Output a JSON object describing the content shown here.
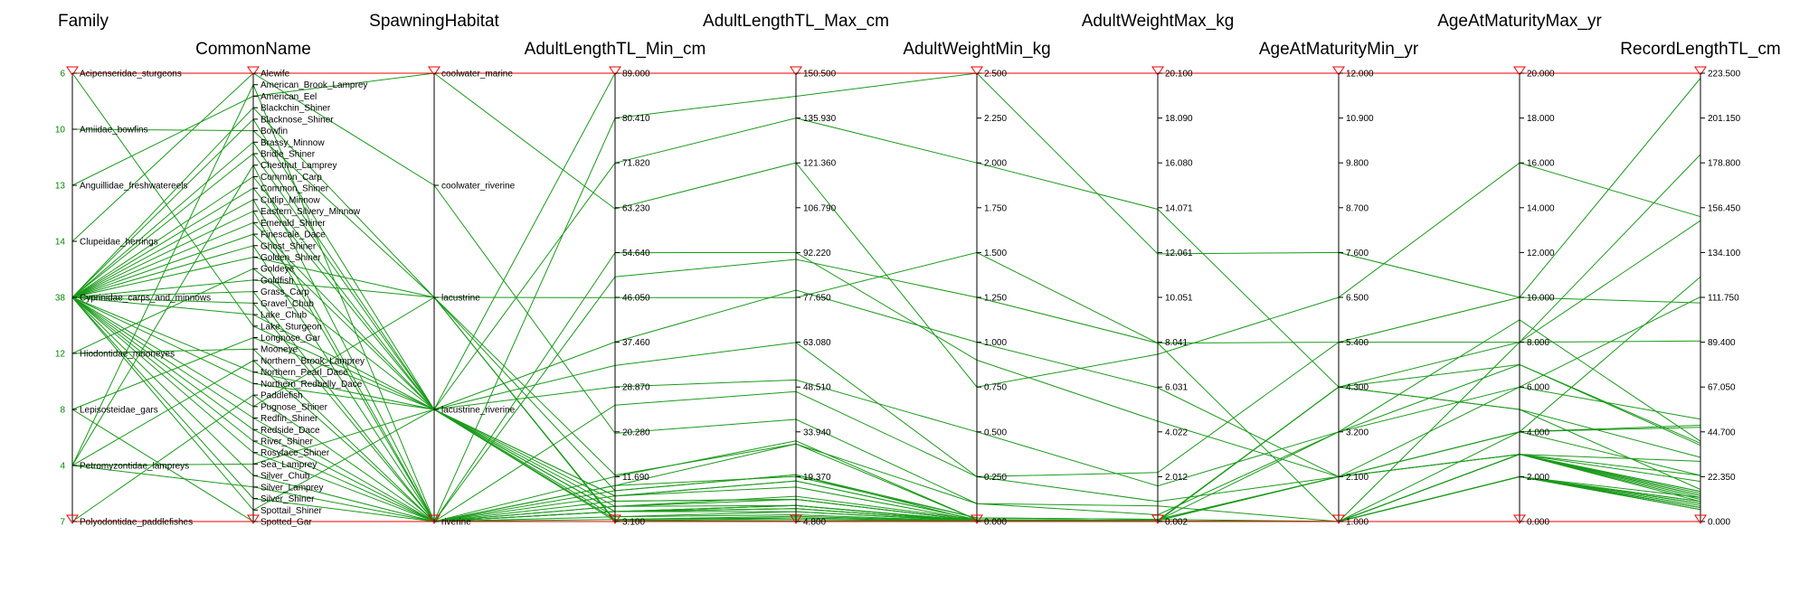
{
  "chart_data": {
    "type": "parallel_coordinates",
    "line_color": "#1a9a1a",
    "axis_color": "#000000",
    "marker_color": "#ee0000",
    "axes": [
      {
        "name": "Family",
        "kind": "categorical",
        "title_row": "top",
        "categories": [
          "Acipenseridae_sturgeons",
          "Amiidae_bowfins",
          "Anguillidae_freshwatereels",
          "Clupeidae_herrings",
          "Cyprinidae_carps_and_minnows",
          "Hiodontidae_mooneyes",
          "Lepisosteidae_gars",
          "Petromyzontidae_lampreys",
          "Polyodontidae_paddlefishes"
        ],
        "counts": [
          "6",
          "10",
          "13",
          "14",
          "38",
          "12",
          "8",
          "4",
          "7"
        ]
      },
      {
        "name": "CommonName",
        "kind": "categorical",
        "title_row": "bottom",
        "categories": [
          "Alewife",
          "American_Brook_Lamprey",
          "American_Eel",
          "Blackchin_Shiner",
          "Blacknose_Shiner",
          "Bowfin",
          "Brassy_Minnow",
          "Bridle_Shiner",
          "Chestnut_Lamprey",
          "Common_Carp",
          "Common_Shiner",
          "Cutlip_Minnow",
          "Eastern_Silvery_Minnow",
          "Emerald_Shiner",
          "Finescale_Dace",
          "Ghost_Shiner",
          "Golden_Shiner",
          "Goldeye",
          "Goldfish",
          "Grass_Carp",
          "Gravel_Chub",
          "Lake_Chub",
          "Lake_Sturgeon",
          "Longnose_Gar",
          "Mooneye",
          "Northern_Brook_Lamprey",
          "Northern_Pearl_Dace",
          "Northern_Redbelly_Dace",
          "Paddlefish",
          "Pugnose_Shiner",
          "Redfin_Shiner",
          "Redside_Dace",
          "River_Shiner",
          "Rosyface_Shiner",
          "Sea_Lamprey",
          "Silver_Chub",
          "Silver_Lamprey",
          "Silver_Shiner",
          "Spottail_Shiner",
          "Spotted_Gar"
        ]
      },
      {
        "name": "SpawningHabitat",
        "kind": "categorical",
        "title_row": "top",
        "categories": [
          "coolwater_marine",
          "coolwater_riverine",
          "lacustrine",
          "lacustrine_riverine",
          "riverine"
        ]
      },
      {
        "name": "AdultLengthTL_Min_cm",
        "kind": "numeric",
        "title_row": "bottom",
        "min": 3.1,
        "max": 89.0,
        "ticks": [
          "89.000",
          "80.410",
          "71.820",
          "63.230",
          "54.640",
          "46.050",
          "37.460",
          "28.870",
          "20.280",
          "11.690",
          "3.100"
        ]
      },
      {
        "name": "AdultLengthTL_Max_cm",
        "kind": "numeric",
        "title_row": "top",
        "min": 4.8,
        "max": 150.5,
        "ticks": [
          "150.500",
          "135.930",
          "121.360",
          "106.790",
          "92.220",
          "77.650",
          "63.080",
          "48.510",
          "33.940",
          "19.370",
          "4.800"
        ]
      },
      {
        "name": "AdultWeightMin_kg",
        "kind": "numeric",
        "title_row": "bottom",
        "min": 0.0,
        "max": 2.5,
        "ticks": [
          "2.500",
          "2.250",
          "2.000",
          "1.750",
          "1.500",
          "1.250",
          "1.000",
          "0.750",
          "0.500",
          "0.250",
          "0.000"
        ]
      },
      {
        "name": "AdultWeightMax_kg",
        "kind": "numeric",
        "title_row": "top",
        "min": 0.002,
        "max": 20.1,
        "ticks": [
          "20.100",
          "18.090",
          "16.080",
          "14.071",
          "12.061",
          "10.051",
          "8.041",
          "6.031",
          "4.022",
          "2.012",
          "0.002"
        ]
      },
      {
        "name": "AgeAtMaturityMin_yr",
        "kind": "numeric",
        "title_row": "bottom",
        "min": 1.0,
        "max": 12.0,
        "ticks": [
          "12.000",
          "10.900",
          "9.800",
          "8.700",
          "7.600",
          "6.500",
          "5.400",
          "4.300",
          "3.200",
          "2.100",
          "1.000"
        ]
      },
      {
        "name": "AgeAtMaturityMax_yr",
        "kind": "numeric",
        "title_row": "top",
        "min": 0.0,
        "max": 20.0,
        "ticks": [
          "20.000",
          "18.000",
          "16.000",
          "14.000",
          "12.000",
          "10.000",
          "8.000",
          "6.000",
          "4.000",
          "2.000",
          "0.000"
        ]
      },
      {
        "name": "RecordLengthTL_cm",
        "kind": "numeric",
        "title_row": "bottom",
        "min": 0.0,
        "max": 223.5,
        "ticks": [
          "223.500",
          "201.150",
          "178.800",
          "156.450",
          "134.100",
          "111.750",
          "89.400",
          "67.050",
          "44.700",
          "22.350",
          "0.000"
        ]
      }
    ],
    "records": [
      [
        "Acipenseridae_sturgeons",
        "Lake_Sturgeon",
        "lacustrine_riverine",
        89.0,
        150.5,
        2.5,
        20.1,
        12.0,
        20.0,
        223.5
      ],
      [
        "Amiidae_bowfins",
        "Bowfin",
        "lacustrine",
        46.0,
        77.6,
        1.5,
        8.0,
        5.4,
        10.0,
        109.0
      ],
      [
        "Anguillidae_freshwatereels",
        "American_Eel",
        "coolwater_marine",
        63.0,
        121.4,
        0.75,
        7.5,
        6.5,
        16.0,
        152.0
      ],
      [
        "Clupeidae_herrings",
        "Alewife",
        "coolwater_riverine",
        20.0,
        38.0,
        0.1,
        0.3,
        3.2,
        9.0,
        40.0
      ],
      [
        "Hiodontidae_mooneyes",
        "Goldeye",
        "lacustrine_riverine",
        28.9,
        50.8,
        0.5,
        1.6,
        3.2,
        6.0,
        51.0
      ],
      [
        "Hiodontidae_mooneyes",
        "Mooneye",
        "riverine",
        25.4,
        47.0,
        0.25,
        0.9,
        2.1,
        4.0,
        47.0
      ],
      [
        "Lepisosteidae_gars",
        "Longnose_Gar",
        "lacustrine_riverine",
        71.8,
        135.9,
        2.0,
        14.0,
        4.3,
        8.0,
        183.0
      ],
      [
        "Lepisosteidae_gars",
        "Spotted_Gar",
        "riverine",
        54.6,
        92.2,
        0.9,
        4.5,
        2.1,
        6.0,
        112.0
      ],
      [
        "Petromyzontidae_lampreys",
        "Sea_Lamprey",
        "lacustrine_riverine",
        33.0,
        63.0,
        0.25,
        2.2,
        5.4,
        8.0,
        90.0
      ],
      [
        "Petromyzontidae_lampreys",
        "Silver_Lamprey",
        "riverine",
        10.0,
        30.0,
        0.01,
        0.05,
        4.3,
        7.0,
        39.0
      ],
      [
        "Petromyzontidae_lampreys",
        "Chestnut_Lamprey",
        "riverine",
        11.7,
        31.0,
        0.01,
        0.05,
        3.2,
        7.0,
        38.0
      ],
      [
        "Petromyzontidae_lampreys",
        "American_Brook_Lamprey",
        "riverine",
        9.0,
        20.0,
        0.005,
        0.02,
        4.3,
        5.0,
        32.0
      ],
      [
        "Petromyzontidae_lampreys",
        "Northern_Brook_Lamprey",
        "riverine",
        8.0,
        16.0,
        0.005,
        0.02,
        4.3,
        5.0,
        16.0
      ],
      [
        "Polyodontidae_paddlefishes",
        "Paddlefish",
        "riverine",
        80.4,
        143.0,
        2.5,
        12.0,
        7.6,
        10.0,
        221.0
      ],
      [
        "Cyprinidae_carps_and_minnows",
        "Common_Carp",
        "lacustrine_riverine",
        37.5,
        80.0,
        1.0,
        6.0,
        2.1,
        4.0,
        122.0
      ],
      [
        "Cyprinidae_carps_and_minnows",
        "Grass_Carp",
        "riverine",
        50.0,
        90.0,
        1.25,
        8.0,
        1.0,
        8.0,
        150.0
      ],
      [
        "Cyprinidae_carps_and_minnows",
        "Goldfish",
        "lacustrine",
        12.0,
        30.0,
        0.1,
        0.7,
        1.0,
        4.0,
        48.0
      ],
      [
        "Cyprinidae_carps_and_minnows",
        "Golden_Shiner",
        "lacustrine",
        9.0,
        20.0,
        0.02,
        0.1,
        1.0,
        3.0,
        30.0
      ],
      [
        "Cyprinidae_carps_and_minnows",
        "Silver_Chub",
        "riverine",
        10.0,
        19.4,
        0.02,
        0.1,
        2.1,
        3.0,
        23.0
      ],
      [
        "Cyprinidae_carps_and_minnows",
        "Gravel_Chub",
        "riverine",
        6.0,
        13.0,
        0.01,
        0.04,
        2.1,
        3.0,
        14.0
      ],
      [
        "Cyprinidae_carps_and_minnows",
        "Lake_Chub",
        "lacustrine_riverine",
        8.0,
        18.0,
        0.01,
        0.05,
        2.1,
        4.0,
        23.0
      ],
      [
        "Cyprinidae_carps_and_minnows",
        "Common_Shiner",
        "lacustrine_riverine",
        8.0,
        18.0,
        0.01,
        0.05,
        2.1,
        3.0,
        20.0
      ],
      [
        "Cyprinidae_carps_and_minnows",
        "Emerald_Shiner",
        "lacustrine_riverine",
        6.0,
        10.0,
        0.005,
        0.02,
        1.0,
        3.0,
        13.0
      ],
      [
        "Cyprinidae_carps_and_minnows",
        "Spottail_Shiner",
        "lacustrine_riverine",
        7.0,
        12.0,
        0.005,
        0.02,
        1.0,
        3.0,
        15.0
      ],
      [
        "Cyprinidae_carps_and_minnows",
        "Silver_Shiner",
        "riverine",
        7.0,
        12.0,
        0.005,
        0.02,
        1.0,
        3.0,
        13.0
      ],
      [
        "Cyprinidae_carps_and_minnows",
        "River_Shiner",
        "riverine",
        5.0,
        9.0,
        0.002,
        0.01,
        1.0,
        3.0,
        10.0
      ],
      [
        "Cyprinidae_carps_and_minnows",
        "Rosyface_Shiner",
        "riverine",
        5.0,
        8.0,
        0.002,
        0.01,
        1.0,
        2.0,
        9.0
      ],
      [
        "Cyprinidae_carps_and_minnows",
        "Redfin_Shiner",
        "riverine",
        4.0,
        8.0,
        0.002,
        0.01,
        1.0,
        2.0,
        9.0
      ],
      [
        "Cyprinidae_carps_and_minnows",
        "Redside_Dace",
        "riverine",
        5.0,
        10.0,
        0.002,
        0.01,
        1.0,
        3.0,
        12.0
      ],
      [
        "Cyprinidae_carps_and_minnows",
        "Finescale_Dace",
        "lacustrine_riverine",
        5.0,
        9.0,
        0.002,
        0.01,
        1.0,
        2.0,
        10.0
      ],
      [
        "Cyprinidae_carps_and_minnows",
        "Northern_Pearl_Dace",
        "lacustrine_riverine",
        5.0,
        10.0,
        0.002,
        0.01,
        1.0,
        3.0,
        11.0
      ],
      [
        "Cyprinidae_carps_and_minnows",
        "Northern_Redbelly_Dace",
        "lacustrine_riverine",
        4.0,
        7.0,
        0.002,
        0.01,
        1.0,
        2.0,
        8.0
      ],
      [
        "Cyprinidae_carps_and_minnows",
        "Eastern_Silvery_Minnow",
        "riverine",
        5.0,
        10.0,
        0.002,
        0.01,
        1.0,
        2.0,
        12.0
      ],
      [
        "Cyprinidae_carps_and_minnows",
        "Brassy_Minnow",
        "lacustrine_riverine",
        5.0,
        9.0,
        0.002,
        0.01,
        1.0,
        2.0,
        10.0
      ],
      [
        "Cyprinidae_carps_and_minnows",
        "Cutlip_Minnow",
        "riverine",
        6.0,
        12.0,
        0.005,
        0.02,
        1.0,
        3.0,
        15.0
      ],
      [
        "Cyprinidae_carps_and_minnows",
        "Blackchin_Shiner",
        "lacustrine",
        3.1,
        6.0,
        0.001,
        0.005,
        1.0,
        2.0,
        7.0
      ],
      [
        "Cyprinidae_carps_and_minnows",
        "Blacknose_Shiner",
        "lacustrine_riverine",
        3.5,
        6.5,
        0.001,
        0.005,
        1.0,
        2.0,
        7.0
      ],
      [
        "Cyprinidae_carps_and_minnows",
        "Bridle_Shiner",
        "lacustrine_riverine",
        3.2,
        5.0,
        0.001,
        0.005,
        1.0,
        2.0,
        6.0
      ],
      [
        "Cyprinidae_carps_and_minnows",
        "Ghost_Shiner",
        "riverine",
        3.5,
        6.0,
        0.001,
        0.005,
        1.0,
        2.0,
        7.0
      ],
      [
        "Cyprinidae_carps_and_minnows",
        "Pugnose_Shiner",
        "lacustrine",
        3.3,
        5.5,
        0.001,
        0.005,
        1.0,
        2.0,
        6.0
      ]
    ]
  }
}
